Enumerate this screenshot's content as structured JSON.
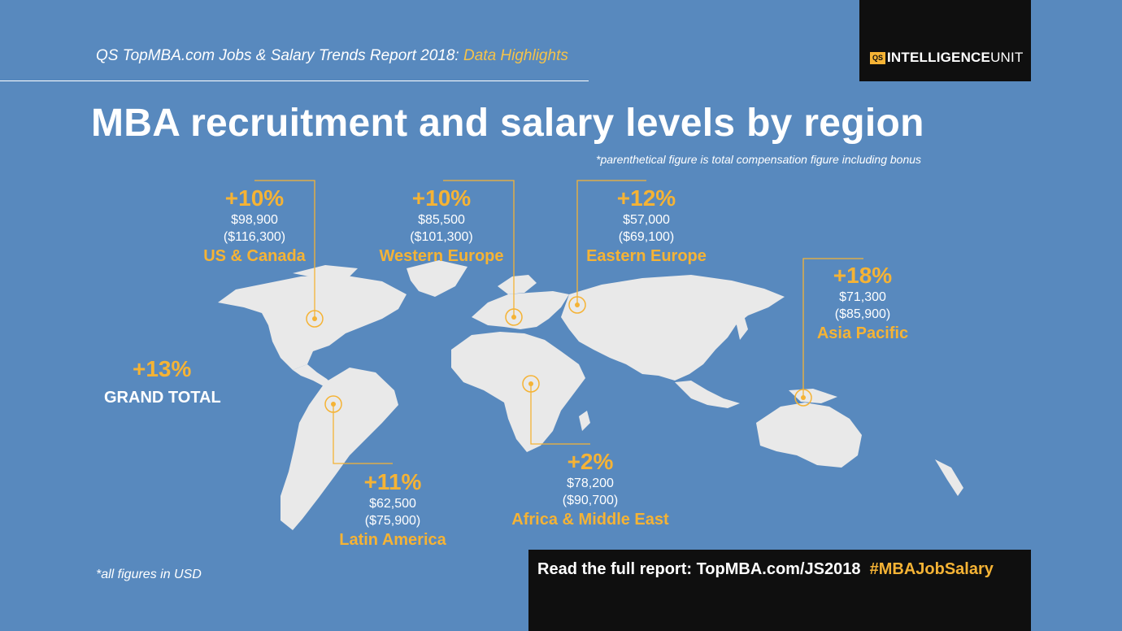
{
  "header": {
    "report_title": "QS TopMBA.com Jobs & Salary Trends Report 2018:",
    "report_highlight": "Data Highlights",
    "brand_badge": "QS",
    "brand_bold": "INTELLIGENCE",
    "brand_light": "UNIT"
  },
  "title": "MBA recruitment and salary levels by region",
  "note": "*parenthetical figure is total compensation figure including bonus",
  "regions": [
    {
      "pct": "+10%",
      "salary": "$98,900",
      "total": "($116,300)",
      "name": "US & Canada"
    },
    {
      "pct": "+10%",
      "salary": "$85,500",
      "total": "($101,300)",
      "name": "Western Europe"
    },
    {
      "pct": "+12%",
      "salary": "$57,000",
      "total": "($69,100)",
      "name": "Eastern Europe"
    },
    {
      "pct": "+18%",
      "salary": "$71,300",
      "total": "($85,900)",
      "name": "Asia Pacific"
    },
    {
      "pct": "+11%",
      "salary": "$62,500",
      "total": "($75,900)",
      "name": "Latin America"
    },
    {
      "pct": "+2%",
      "salary": "$78,200",
      "total": "($90,700)",
      "name": "Africa & Middle East"
    }
  ],
  "grand_total": {
    "pct": "+13%",
    "label": "GRAND TOTAL"
  },
  "footnote": "*all figures in USD",
  "cta": {
    "text": "Read the full report: TopMBA.com/JS2018",
    "hashtag": "#MBAJobSalary"
  },
  "colors": {
    "background": "#5889be",
    "accent": "#f5b335",
    "land": "#e9e9e9",
    "dark": "#0f0f0f"
  }
}
